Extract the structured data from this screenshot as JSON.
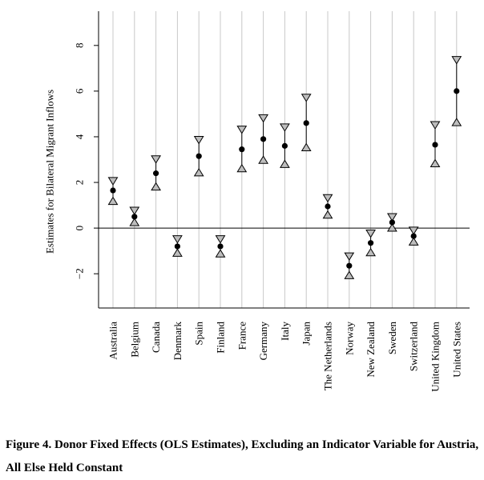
{
  "chart_data": {
    "type": "scatter",
    "ylabel": "Estimates for Bilateral Migrant Inflows",
    "xlabel": "",
    "ylim": [
      -3.5,
      9.5
    ],
    "yticks": [
      -2,
      0,
      2,
      4,
      6,
      8
    ],
    "ytick_labels": [
      "−2",
      "0",
      "2",
      "4",
      "6",
      "8"
    ],
    "grid": "vertical",
    "reference_line_y": 0,
    "categories": [
      "Australia",
      "Belgium",
      "Canada",
      "Denmark",
      "Spain",
      "Finland",
      "France",
      "Germany",
      "Italy",
      "Japan",
      "The Netherlands",
      "Norway",
      "New Zealand",
      "Sweden",
      "Switzerland",
      "United Kingdom",
      "United States"
    ],
    "estimates": [
      1.65,
      0.5,
      2.4,
      -0.8,
      3.15,
      -0.8,
      3.45,
      3.9,
      3.6,
      4.6,
      0.95,
      -1.65,
      -0.65,
      0.25,
      -0.35,
      3.65,
      6.0
    ],
    "upper": [
      1.9,
      0.6,
      2.85,
      -0.65,
      3.7,
      -0.65,
      4.15,
      4.65,
      4.25,
      5.55,
      1.15,
      -1.4,
      -0.4,
      0.32,
      -0.27,
      4.35,
      7.2
    ],
    "lower": [
      1.35,
      0.42,
      1.98,
      -0.92,
      2.6,
      -0.95,
      2.78,
      3.15,
      2.97,
      3.7,
      0.75,
      -1.9,
      -0.9,
      0.18,
      -0.43,
      3.0,
      4.8
    ]
  },
  "caption": {
    "text": "Figure 4. Donor Fixed Effects (OLS Estimates), Excluding an Indicator Variable for Austria, All Else Held Constant"
  },
  "colors": {
    "point": "#000000",
    "grid": "#c8c8c8",
    "axis": "#000000"
  }
}
